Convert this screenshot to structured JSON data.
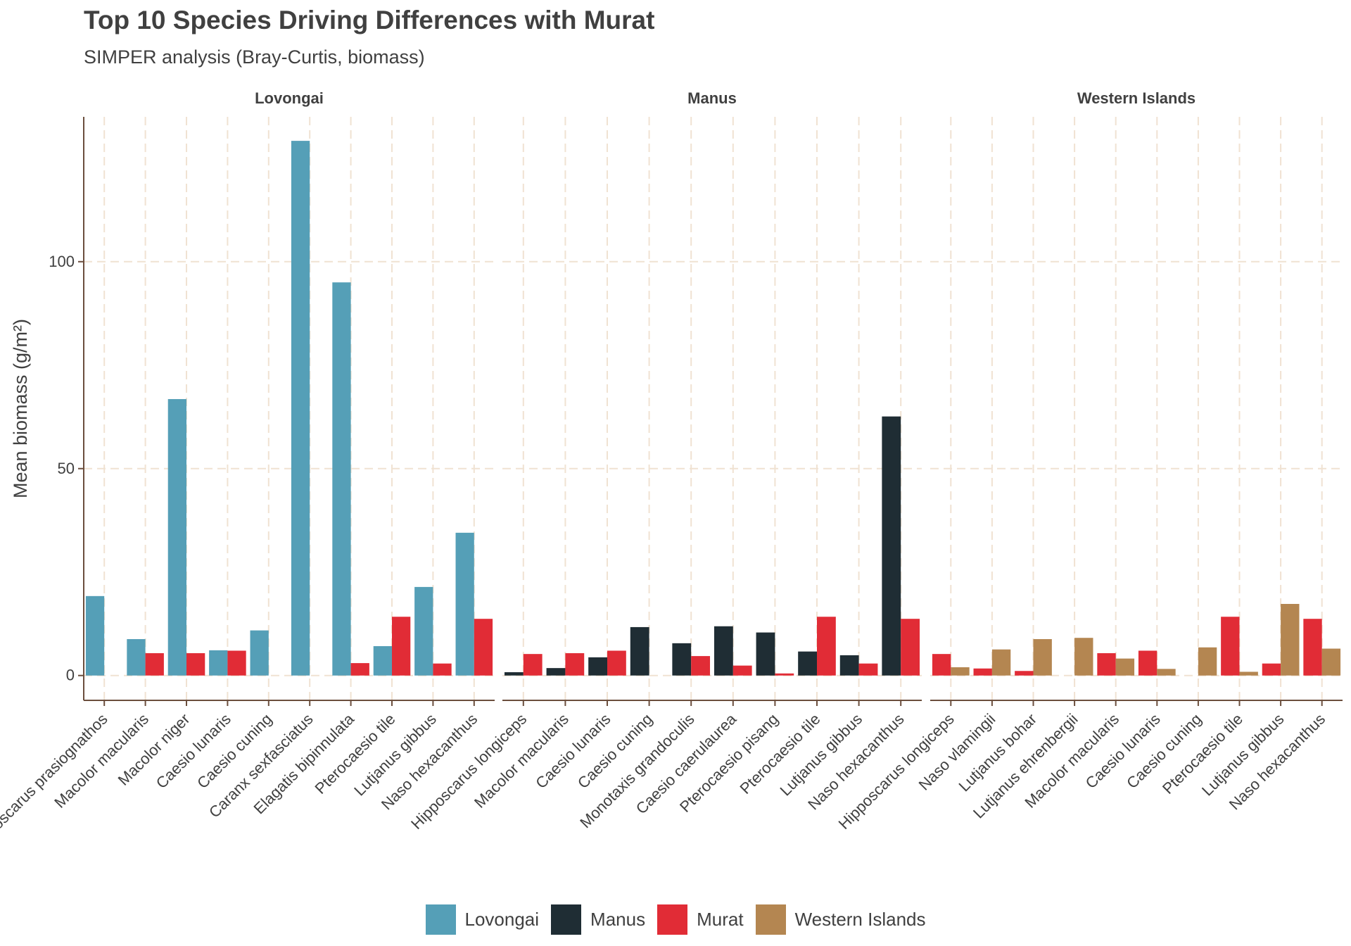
{
  "chart_data": {
    "type": "bar",
    "title": "Top 10 Species Driving Differences with Murat",
    "subtitle": "SIMPER analysis (Bray-Curtis, biomass)",
    "xlabel": "",
    "ylabel": "Mean biomass (g/m²)",
    "ylim": [
      -6,
      135
    ],
    "yticks": [
      0,
      50,
      100
    ],
    "grid": true,
    "legend_position": "bottom",
    "colors": {
      "Lovongai": "#559FB7",
      "Manus": "#1F2D34",
      "Murat": "#E12C36",
      "Western Islands": "#B48651"
    },
    "legend": [
      "Lovongai",
      "Manus",
      "Murat",
      "Western Islands"
    ],
    "panels": [
      {
        "name": "Lovongai",
        "comparison_group": "Lovongai",
        "categories": [
          "Hipposcarus prasiognathos",
          "Macolor macularis",
          "Macolor niger",
          "Caesio lunaris",
          "Caesio cuning",
          "Caranx sexfasciatus",
          "Elagatis bipinnulata",
          "Pterocaesio tile",
          "Lutjanus gibbus",
          "Naso hexacanthus"
        ],
        "series": [
          {
            "name": "Lovongai",
            "values": [
              19.2,
              8.8,
              66.8,
              6.1,
              10.9,
              129.2,
              95.0,
              7.1,
              21.4,
              34.5
            ]
          },
          {
            "name": "Murat",
            "values": [
              0,
              5.4,
              5.4,
              6.0,
              0,
              0,
              3.0,
              14.2,
              2.9,
              13.7
            ]
          }
        ]
      },
      {
        "name": "Manus",
        "comparison_group": "Manus",
        "categories": [
          "Hipposcarus longiceps",
          "Macolor macularis",
          "Caesio lunaris",
          "Caesio cuning",
          "Monotaxis grandoculis",
          "Caesio caerulaurea",
          "Pterocaesio pisang",
          "Pterocaesio tile",
          "Lutjanus gibbus",
          "Naso hexacanthus"
        ],
        "series": [
          {
            "name": "Manus",
            "values": [
              0.8,
              1.8,
              4.4,
              11.7,
              7.8,
              11.9,
              10.4,
              5.8,
              4.9,
              62.6
            ]
          },
          {
            "name": "Murat",
            "values": [
              5.2,
              5.4,
              6.0,
              0,
              4.7,
              2.4,
              0.5,
              14.2,
              2.9,
              13.7
            ]
          }
        ]
      },
      {
        "name": "Western Islands",
        "comparison_group": "Western Islands",
        "categories": [
          "Hipposcarus longiceps",
          "Naso vlamingii",
          "Lutjanus bohar",
          "Lutjanus ehrenbergii",
          "Macolor macularis",
          "Caesio lunaris",
          "Caesio cuning",
          "Pterocaesio tile",
          "Lutjanus gibbus",
          "Naso hexacanthus"
        ],
        "series": [
          {
            "name": "Murat",
            "values": [
              5.2,
              1.7,
              1.1,
              0,
              5.4,
              6.0,
              0,
              14.2,
              2.9,
              13.7
            ]
          },
          {
            "name": "Western Islands",
            "values": [
              2.0,
              6.3,
              8.8,
              9.1,
              4.1,
              1.6,
              6.8,
              0.9,
              17.3,
              6.5
            ]
          }
        ]
      }
    ]
  }
}
